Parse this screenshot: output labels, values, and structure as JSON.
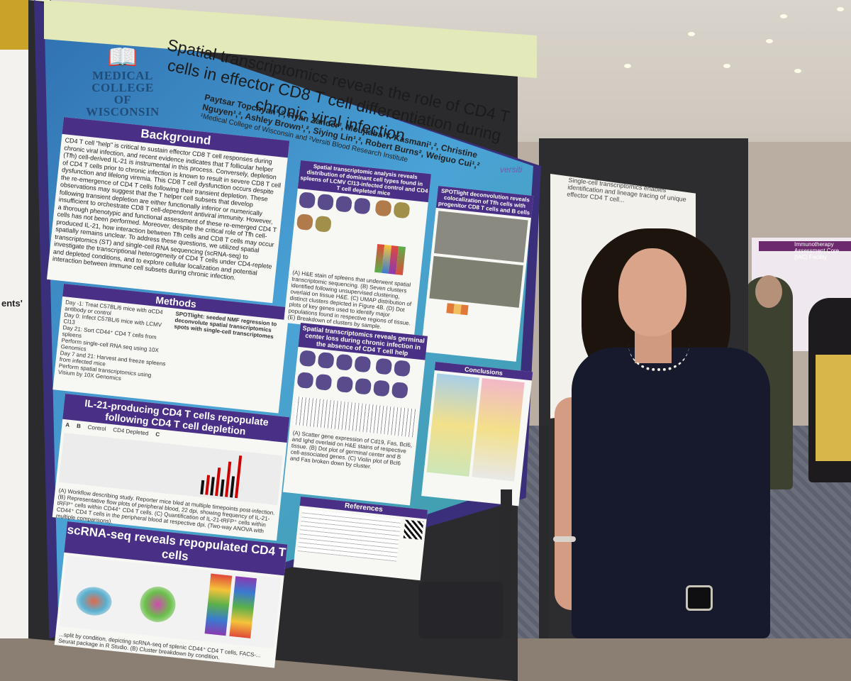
{
  "poster": {
    "institution": "MEDICAL COLLEGE OF WISCONSIN",
    "title": "Spatial transcriptomics reveals the role of CD4 T cells in effector CD8 T cell differentiation during chronic viral infection",
    "authors": "Paytsar Topchyan¹,², Ryan Zander², Moujtaba Y. Kasmani¹,², Christine Nguyen¹,², Ashley Brown¹,², Siying Lin¹,², Robert Burns², Weiguo Cui¹,²",
    "affiliations": "¹Medical College of Wisconsin and ²Versiti Blood Research Institute",
    "sponsor_logo": "versiti",
    "sections": {
      "background": {
        "heading": "Background",
        "text": "CD4 T cell \"help\" is critical to sustain effector CD8 T cell responses during chronic viral infection, and recent evidence indicates that T follicular helper (Tfh) cell-derived IL-21 is instrumental in this process. Conversely, depletion of CD4 T cells prior to chronic infection is known to result in severe CD8 T cell dysfunction and lifelong viremia. This CD8 T cell dysfunction occurs despite the re-emergence of CD4 T cells following their transient depletion. These observations may suggest that the T helper cell subsets that develop following transient depletion are either functionally inferior or numerically insufficient to orchestrate CD8 T cell-dependent antiviral immunity. However, a thorough phenotypic and functional assessment of these re-emerged CD4 T cells has not been performed. Moreover, despite the critical role of Tfh cell-produced IL-21, how interaction between Tfh cells and CD8 T cells may occur spatially remains unclear. To address these questions, we utilized spatial transcriptomics (ST) and single-cell RNA sequencing (scRNA-seq) to investigate the transcriptional heterogeneity of CD4 T cells under CD4-replete and depleted conditions, and to explore cellular localization and potential interaction between immune cell subsets during chronic infection."
      },
      "methods": {
        "heading": "Methods",
        "spotlight_heading": "SPOTlight: seeded NMF regression to deconvolute spatial transcriptomics spots with single-cell transcriptomes",
        "steps": [
          "Day -1: Treat C57BL/6 mice with αCD4 antibody or control",
          "Day 0: Infect C57BL/6 mice with LCMV Cl13",
          "Day 21: Sort CD44⁺ CD4 T cells from spleens",
          "Perform single-cell RNA seq using 10X Genomics",
          "Day 7 and 21: Harvest and freeze spleens from infected mice",
          "Perform spatial transcriptomics using Visium by 10X Genomics"
        ]
      },
      "il21": {
        "heading": "IL-21-producing CD4 T cells repopulate following CD4 T cell depletion",
        "panel_labels": [
          "A",
          "B",
          "C"
        ],
        "control_label": "Control",
        "depleted_label": "CD4 Depleted",
        "caption": "(A) Workflow describing study. Reporter mice bled at multiple timepoints post-infection. (B) Representative flow plots of peripheral blood, 22 dpi, showing frequency of IL-21-tRFP⁺ cells within CD44⁺ CD4 T cells. (C) Quantification of IL-21-tRFP⁺ cells within CD44⁺ CD4 T cells in the peripheral blood at respective dpi. (Two-way ANOVA with multiple comparisons)."
      },
      "scrna": {
        "heading": "scRNA-seq reveals repopulated CD4 T cells",
        "caption": "...split by condition, depicting scRNA-seq of splenic CD44⁺ CD4 T cells, FACS-... Seurat package in R Studio. (B) Cluster breakdown by condition."
      },
      "spatial_analysis": {
        "heading": "Spatial transcriptomic analysis reveals distribution of dominant cell types found in spleens of LCMV Cl13-infected control and CD4 T cell depleted mice",
        "caption": "(A) H&E stain of spleens that underwent spatial transcriptomic sequencing. (B) Seven clusters identified following unsupervised clustering, overlaid on tissue H&E. (C) UMAP distribution of distinct clusters depicted in Figure 4B. (D) Dot plots of key genes used to identify major populations found in respective regions of tissue. (E) Breakdown of clusters by sample."
      },
      "spotlight_result": {
        "heading": "SPOTlight deconvolution reveals colocalization of Tfh cells with progenitor CD8 T cells and B cells"
      },
      "germinal": {
        "heading": "Spatial transcriptomics reveals germinal center loss during chronic infection in the absence of CD4 T cell help",
        "caption": "(A) Scatter gene expression of Cd19, Fas, Bcl6, and Ighd overlaid on H&E stains of respective tissue. (B) Dot plot of germinal center and B cell-associated genes. (C) Violin plot of Bcl6 and Fas broken down by cluster."
      },
      "conclusions": {
        "heading": "Conclusions"
      },
      "references": {
        "heading": "References"
      }
    }
  },
  "left_poster_fragment": {
    "text": "ents'"
  },
  "second_poster": {
    "title": "Single-cell transcriptomics enables identification and lineage tracing of unique effector CD4 T cell..."
  },
  "third_poster": {
    "title": "Immunotherapy Assessment Core (IAC) Facility"
  },
  "colors": {
    "section_header": "#4a2f86",
    "poster_title_band": "#e3e9b8",
    "poster_border": "#3a2f7a",
    "dress": "#161a2c"
  }
}
